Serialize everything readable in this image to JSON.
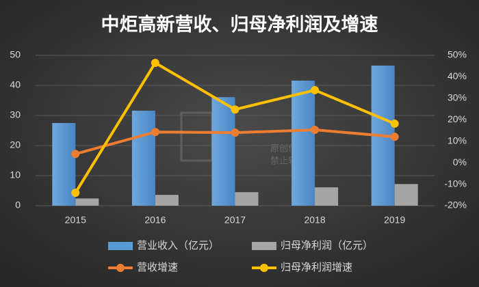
{
  "chart_data": {
    "type": "bar",
    "title": "中炬高新营收、归母净利润及增速",
    "categories": [
      "2015",
      "2016",
      "2017",
      "2018",
      "2019"
    ],
    "series": [
      {
        "name": "营业收入（亿元）",
        "type": "bar",
        "color": "#5b9bd5",
        "values": [
          27.5,
          31.6,
          36.1,
          41.6,
          46.6
        ]
      },
      {
        "name": "归母净利润（亿元）",
        "type": "bar",
        "color": "#a5a5a5",
        "values": [
          2.4,
          3.6,
          4.5,
          6.1,
          7.2
        ]
      },
      {
        "name": "营收增速",
        "type": "line",
        "axis": "y2",
        "color": "#ed7d31",
        "values": [
          4.1,
          14.3,
          14.0,
          15.3,
          12.1
        ]
      },
      {
        "name": "归母净利润增速",
        "type": "line",
        "axis": "y2",
        "color": "#ffc000",
        "values": [
          -14.0,
          46.5,
          24.8,
          33.8,
          18.2
        ]
      }
    ],
    "ylim": [
      0,
      50
    ],
    "yticks": [
      0,
      10,
      20,
      30,
      40,
      50
    ],
    "y2lim": [
      -20,
      50
    ],
    "y2ticks": [
      {
        "value": -20,
        "label": "-20%"
      },
      {
        "value": -10,
        "label": "-10%"
      },
      {
        "value": 0,
        "label": "0%"
      },
      {
        "value": 10,
        "label": "10%"
      },
      {
        "value": 20,
        "label": "20%"
      },
      {
        "value": 30,
        "label": "30%"
      },
      {
        "value": 40,
        "label": "40%"
      },
      {
        "value": 50,
        "label": "50%"
      }
    ],
    "grid": true,
    "legend": "bottom",
    "watermark": [
      "原创作品",
      "禁止转载"
    ]
  }
}
